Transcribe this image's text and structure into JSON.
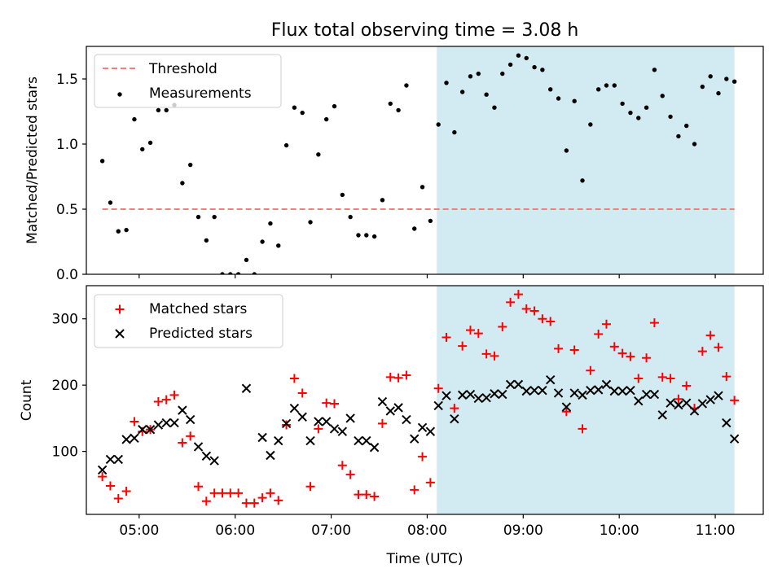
{
  "figure": {
    "title": "Flux total observing time = 3.08 h"
  },
  "chart_data": [
    {
      "type": "scatter",
      "panel": "top",
      "ylabel": "Matched/Predicted stars",
      "ylim": [
        0,
        1.75
      ],
      "xlim": [
        "04:27",
        "11:30"
      ],
      "yticks": [
        0.0,
        0.5,
        1.0,
        1.5
      ],
      "ytick_labels": [
        "0.0",
        "0.5",
        "1.0",
        "1.5"
      ],
      "legend_position": "upper left",
      "shaded_region": {
        "x_start": "08:06",
        "x_end": "11:12",
        "color": "#add8e6"
      },
      "threshold": {
        "name": "Threshold",
        "value": 0.5,
        "x_start": "04:37",
        "x_end": "11:12",
        "color": "#f08080",
        "style": "dashed"
      },
      "series": [
        {
          "name": "Measurements",
          "color": "#000000",
          "marker": "dot",
          "x": [
            "04:37",
            "04:42",
            "04:47",
            "04:52",
            "04:57",
            "05:02",
            "05:07",
            "05:12",
            "05:17",
            "05:22",
            "05:27",
            "05:32",
            "05:37",
            "05:42",
            "05:47",
            "05:52",
            "05:57",
            "06:02",
            "06:07",
            "06:12",
            "06:17",
            "06:22",
            "06:27",
            "06:32",
            "06:37",
            "06:42",
            "06:47",
            "06:52",
            "06:57",
            "07:02",
            "07:07",
            "07:12",
            "07:17",
            "07:22",
            "07:27",
            "07:32",
            "07:37",
            "07:42",
            "07:47",
            "07:52",
            "07:57",
            "08:02",
            "08:07",
            "08:12",
            "08:17",
            "08:22",
            "08:27",
            "08:32",
            "08:37",
            "08:42",
            "08:47",
            "08:52",
            "08:57",
            "09:02",
            "09:07",
            "09:12",
            "09:17",
            "09:22",
            "09:27",
            "09:32",
            "09:37",
            "09:42",
            "09:47",
            "09:52",
            "09:57",
            "10:02",
            "10:07",
            "10:12",
            "10:17",
            "10:22",
            "10:27",
            "10:32",
            "10:37",
            "10:42",
            "10:47",
            "10:52",
            "10:57",
            "11:02",
            "11:07",
            "11:12"
          ],
          "y": [
            0.87,
            0.55,
            0.33,
            0.34,
            1.19,
            0.96,
            1.01,
            1.26,
            1.26,
            1.3,
            0.7,
            0.84,
            0.44,
            0.26,
            0.44,
            0.0,
            0.0,
            0.0,
            0.11,
            0.0,
            0.25,
            0.39,
            0.22,
            0.99,
            1.28,
            1.24,
            0.4,
            0.92,
            1.19,
            1.29,
            0.61,
            0.44,
            0.3,
            0.3,
            0.29,
            0.57,
            1.31,
            1.26,
            1.45,
            0.35,
            0.67,
            0.41,
            1.15,
            1.47,
            1.09,
            1.4,
            1.52,
            1.54,
            1.38,
            1.28,
            1.54,
            1.61,
            1.68,
            1.66,
            1.59,
            1.57,
            1.42,
            1.35,
            0.95,
            1.33,
            0.72,
            1.15,
            1.42,
            1.45,
            1.45,
            1.31,
            1.24,
            1.2,
            1.28,
            1.57,
            1.37,
            1.21,
            1.06,
            1.14,
            1.0,
            1.44,
            1.52,
            1.39,
            1.5,
            1.48
          ]
        }
      ]
    },
    {
      "type": "scatter",
      "panel": "bottom",
      "xlabel": "Time (UTC)",
      "ylabel": "Count",
      "ylim": [
        5,
        350
      ],
      "xlim": [
        "04:27",
        "11:30"
      ],
      "xticks": [
        "05:00",
        "06:00",
        "07:00",
        "08:00",
        "09:00",
        "10:00",
        "11:00"
      ],
      "yticks": [
        100,
        200,
        300
      ],
      "legend_position": "upper left",
      "shaded_region": {
        "x_start": "08:06",
        "x_end": "11:12",
        "color": "#add8e6"
      },
      "x": [
        "04:37",
        "04:42",
        "04:47",
        "04:52",
        "04:57",
        "05:02",
        "05:07",
        "05:12",
        "05:17",
        "05:22",
        "05:27",
        "05:32",
        "05:37",
        "05:42",
        "05:47",
        "05:52",
        "05:57",
        "06:02",
        "06:07",
        "06:12",
        "06:17",
        "06:22",
        "06:27",
        "06:32",
        "06:37",
        "06:42",
        "06:47",
        "06:52",
        "06:57",
        "07:02",
        "07:07",
        "07:12",
        "07:17",
        "07:22",
        "07:27",
        "07:32",
        "07:37",
        "07:42",
        "07:47",
        "07:52",
        "07:57",
        "08:02",
        "08:07",
        "08:12",
        "08:17",
        "08:22",
        "08:27",
        "08:32",
        "08:37",
        "08:42",
        "08:47",
        "08:52",
        "08:57",
        "09:02",
        "09:07",
        "09:12",
        "09:17",
        "09:22",
        "09:27",
        "09:32",
        "09:37",
        "09:42",
        "09:47",
        "09:52",
        "09:57",
        "10:02",
        "10:07",
        "10:12",
        "10:17",
        "10:22",
        "10:27",
        "10:32",
        "10:37",
        "10:42",
        "10:47",
        "10:52",
        "10:57",
        "11:02",
        "11:07",
        "11:12"
      ],
      "series": [
        {
          "name": "Matched stars",
          "color": "#ff0000",
          "marker": "plus",
          "values": [
            62,
            48,
            29,
            40,
            145,
            130,
            133,
            175,
            178,
            185,
            113,
            123,
            47,
            25,
            37,
            37,
            37,
            37,
            22,
            22,
            30,
            37,
            26,
            140,
            210,
            188,
            47,
            134,
            173,
            172,
            79,
            65,
            35,
            35,
            32,
            142,
            212,
            211,
            215,
            42,
            92,
            53,
            195,
            272,
            165,
            259,
            283,
            278,
            247,
            244,
            288,
            325,
            337,
            315,
            312,
            300,
            296,
            255,
            160,
            253,
            134,
            222,
            277,
            292,
            258,
            248,
            243,
            210,
            241,
            294,
            212,
            210,
            179,
            199,
            165,
            251,
            275,
            257,
            213,
            177
          ]
        },
        {
          "name": "Predicted stars",
          "color": "#000000",
          "marker": "x",
          "values": [
            72,
            88,
            88,
            118,
            120,
            133,
            133,
            140,
            143,
            143,
            162,
            148,
            107,
            93,
            86,
            null,
            null,
            null,
            195,
            null,
            121,
            94,
            116,
            142,
            165,
            152,
            116,
            145,
            145,
            134,
            130,
            150,
            116,
            116,
            106,
            175,
            161,
            166,
            148,
            119,
            136,
            130,
            169,
            184,
            149,
            185,
            186,
            180,
            181,
            187,
            186,
            201,
            201,
            191,
            192,
            192,
            208,
            188,
            167,
            188,
            185,
            192,
            193,
            201,
            191,
            191,
            192,
            176,
            186,
            186,
            155,
            173,
            170,
            173,
            161,
            172,
            178,
            184,
            143,
            119
          ]
        }
      ]
    }
  ]
}
